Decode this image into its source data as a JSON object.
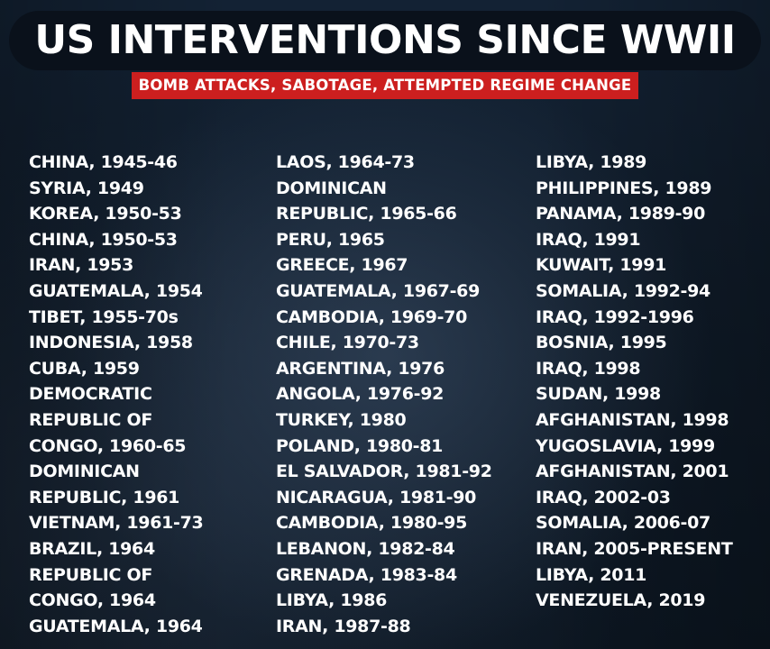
{
  "header": {
    "title": "US INTERVENTIONS SINCE WWII",
    "subtitle": "BOMB ATTACKS, SABOTAGE, ATTEMPTED REGIME CHANGE"
  },
  "colors": {
    "background": "#101c2a",
    "title_bar": "#0a111b",
    "subtitle_bg": "#cc1f1f",
    "text": "#ffffff"
  },
  "columns": [
    [
      "CHINA, 1945-46",
      "SYRIA, 1949",
      "KOREA, 1950-53",
      "CHINA, 1950-53",
      "IRAN, 1953",
      "GUATEMALA, 1954",
      "TIBET, 1955-70s",
      "INDONESIA, 1958",
      "CUBA, 1959",
      "DEMOCRATIC",
      "REPUBLIC OF",
      "CONGO, 1960-65",
      "DOMINICAN",
      "REPUBLIC, 1961",
      "VIETNAM, 1961-73",
      "BRAZIL, 1964",
      "REPUBLIC OF",
      "CONGO, 1964",
      "GUATEMALA, 1964"
    ],
    [
      "LAOS, 1964-73",
      "DOMINICAN",
      "REPUBLIC, 1965-66",
      "PERU, 1965",
      "GREECE, 1967",
      "GUATEMALA, 1967-69",
      "CAMBODIA, 1969-70",
      "CHILE, 1970-73",
      "ARGENTINA, 1976",
      "ANGOLA, 1976-92",
      "TURKEY, 1980",
      "POLAND, 1980-81",
      "EL SALVADOR, 1981-92",
      "NICARAGUA, 1981-90",
      "CAMBODIA, 1980-95",
      "LEBANON, 1982-84",
      "GRENADA, 1983-84",
      "LIBYA, 1986",
      "IRAN, 1987-88"
    ],
    [
      "LIBYA, 1989",
      "PHILIPPINES, 1989",
      "PANAMA, 1989-90",
      "IRAQ, 1991",
      "KUWAIT, 1991",
      "SOMALIA, 1992-94",
      "IRAQ, 1992-1996",
      "BOSNIA, 1995",
      "IRAQ, 1998",
      "SUDAN, 1998",
      "AFGHANISTAN, 1998",
      "YUGOSLAVIA, 1999",
      "AFGHANISTAN, 2001",
      "IRAQ, 2002-03",
      "SOMALIA, 2006-07",
      "IRAN, 2005-PRESENT",
      "LIBYA, 2011",
      "VENEZUELA, 2019"
    ]
  ]
}
